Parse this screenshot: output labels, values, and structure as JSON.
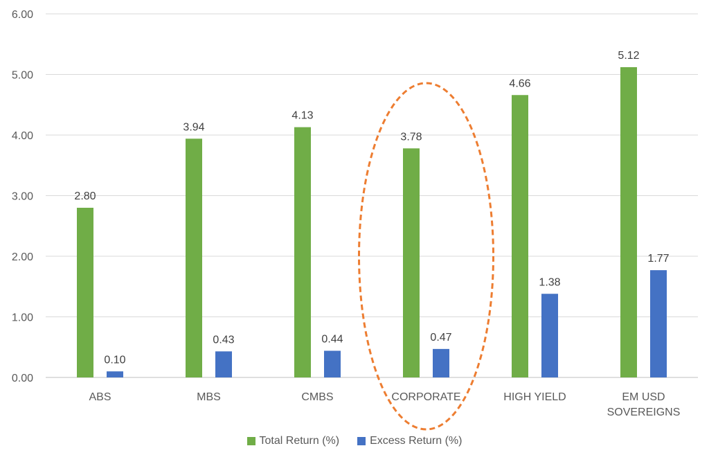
{
  "chart_data": {
    "type": "bar",
    "categories": [
      "ABS",
      "MBS",
      "CMBS",
      "CORPORATE",
      "HIGH YIELD",
      "EM USD SOVEREIGNS"
    ],
    "category_lines": [
      [
        "ABS"
      ],
      [
        "MBS"
      ],
      [
        "CMBS"
      ],
      [
        "CORPORATE"
      ],
      [
        "HIGH YIELD"
      ],
      [
        "EM USD",
        "SOVEREIGNS"
      ]
    ],
    "series": [
      {
        "name": "Total Return (%)",
        "color": "#70ad47",
        "values": [
          2.8,
          3.94,
          4.13,
          3.78,
          4.66,
          5.12
        ]
      },
      {
        "name": "Excess Return (%)",
        "color": "#4472c4",
        "values": [
          0.1,
          0.43,
          0.44,
          0.47,
          1.38,
          1.77
        ]
      }
    ],
    "ylim": [
      0,
      6
    ],
    "yticks": [
      "0.00",
      "1.00",
      "2.00",
      "3.00",
      "4.00",
      "5.00",
      "6.00"
    ],
    "grid": true,
    "legend_position": "bottom",
    "highlight": {
      "category": "CORPORATE",
      "shape": "dashed-ellipse",
      "color": "#ed7d31"
    },
    "title": "",
    "xlabel": "",
    "ylabel": ""
  }
}
